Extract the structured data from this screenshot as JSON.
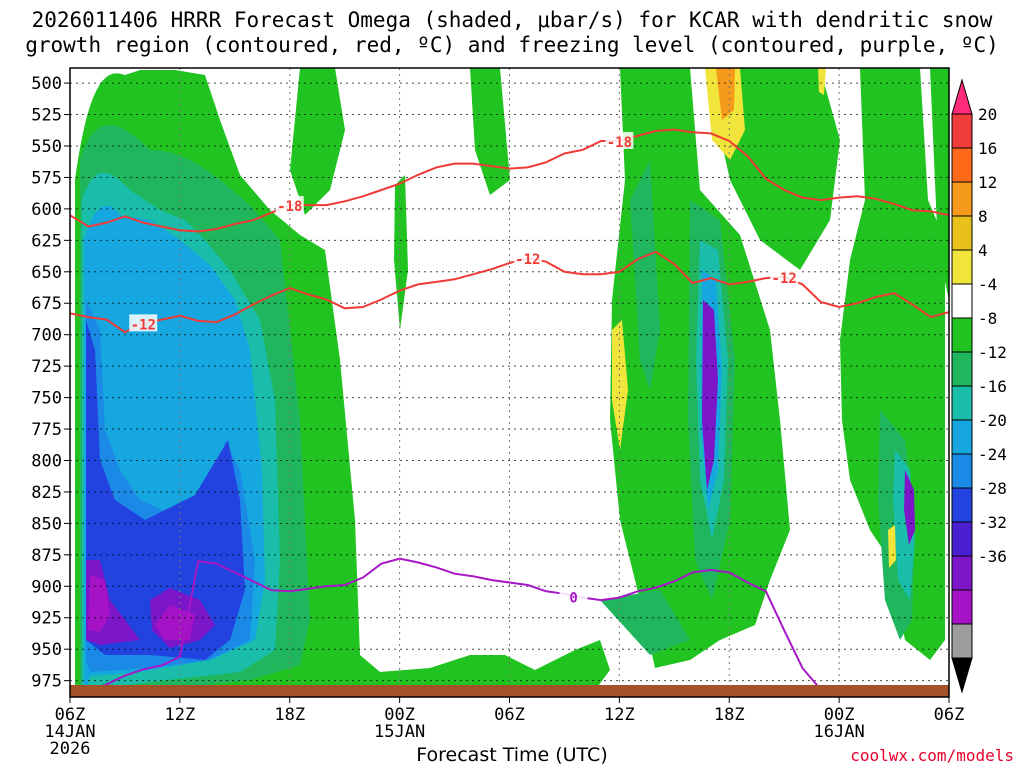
{
  "chart_data": {
    "type": "heatmap",
    "title_line1": "2026011406 HRRR Forecast Omega (shaded, μbar/s) for KCAR with dendritic snow",
    "title_line2": "growth region (contoured, red, ºC) and freezing level (contoured, purple, ºC)",
    "xlabel": "Forecast Time (UTC)",
    "credit": "coolwx.com/models",
    "y_ticks": [
      500,
      525,
      550,
      575,
      600,
      625,
      650,
      675,
      700,
      725,
      750,
      775,
      800,
      825,
      850,
      875,
      900,
      925,
      950,
      975
    ],
    "ylim": [
      488,
      988
    ],
    "y_inverted": true,
    "xlim": [
      0,
      48
    ],
    "x_ticks": [
      {
        "h": 0,
        "l1": "06Z",
        "l2": "14JAN",
        "l3": "2026"
      },
      {
        "h": 6,
        "l1": "12Z",
        "l2": "",
        "l3": ""
      },
      {
        "h": 12,
        "l1": "18Z",
        "l2": "",
        "l3": ""
      },
      {
        "h": 18,
        "l1": "00Z",
        "l2": "15JAN",
        "l3": ""
      },
      {
        "h": 24,
        "l1": "06Z",
        "l2": "",
        "l3": ""
      },
      {
        "h": 30,
        "l1": "12Z",
        "l2": "",
        "l3": ""
      },
      {
        "h": 36,
        "l1": "18Z",
        "l2": "",
        "l3": ""
      },
      {
        "h": 42,
        "l1": "00Z",
        "l2": "16JAN",
        "l3": ""
      },
      {
        "h": 48,
        "l1": "06Z",
        "l2": "",
        "l3": ""
      }
    ],
    "colorbar": {
      "labels": [
        20,
        16,
        12,
        8,
        4,
        -4,
        -8,
        -12,
        -16,
        -20,
        -24,
        -28,
        -32,
        -36
      ],
      "colors": [
        "#ff2a7a",
        "#f13c3c",
        "#ff6a1a",
        "#f59a1a",
        "#e8c21a",
        "#f1e43a",
        "#ffffff",
        "#20c320",
        "#1fb65e",
        "#19bda9",
        "#17a7e0",
        "#1a8ae6",
        "#2243df",
        "#4a1fd2",
        "#7b16c9",
        "#a613c6",
        "#9d9d9d",
        "#000000"
      ]
    },
    "series": [
      {
        "name": "-18",
        "color": "#ef3b36",
        "points": [
          [
            0,
            605
          ],
          [
            1,
            614
          ],
          [
            2,
            611
          ],
          [
            3,
            606
          ],
          [
            4,
            611
          ],
          [
            5,
            614
          ],
          [
            6,
            617
          ],
          [
            7,
            618
          ],
          [
            8,
            616
          ],
          [
            9,
            612
          ],
          [
            10,
            609
          ],
          [
            11,
            603
          ],
          [
            12,
            597
          ],
          [
            13,
            597
          ],
          [
            14,
            597
          ],
          [
            15,
            594
          ],
          [
            16,
            590
          ],
          [
            17,
            585
          ],
          [
            18,
            580
          ],
          [
            19,
            573
          ],
          [
            20,
            567
          ],
          [
            21,
            564
          ],
          [
            22,
            564
          ],
          [
            23,
            566
          ],
          [
            24,
            568
          ],
          [
            25,
            567
          ],
          [
            26,
            563
          ],
          [
            27,
            556
          ],
          [
            28,
            553
          ],
          [
            29,
            546
          ],
          [
            30,
            546
          ],
          [
            31,
            542
          ],
          [
            32,
            538
          ],
          [
            33,
            537
          ],
          [
            34,
            539
          ],
          [
            35,
            540
          ],
          [
            36,
            546
          ],
          [
            37,
            558
          ],
          [
            38,
            576
          ],
          [
            39,
            585
          ],
          [
            40,
            591
          ],
          [
            41,
            593
          ],
          [
            42,
            591
          ],
          [
            43,
            590
          ],
          [
            44,
            592
          ],
          [
            45,
            596
          ],
          [
            46,
            601
          ],
          [
            47,
            602
          ],
          [
            48,
            605
          ]
        ]
      },
      {
        "name": "-12",
        "color": "#ef3b36",
        "points": [
          [
            0,
            683
          ],
          [
            1,
            686
          ],
          [
            2,
            688
          ],
          [
            3,
            698
          ],
          [
            4,
            691
          ],
          [
            5,
            688
          ],
          [
            6,
            685
          ],
          [
            7,
            689
          ],
          [
            8,
            690
          ],
          [
            9,
            684
          ],
          [
            10,
            676
          ],
          [
            11,
            669
          ],
          [
            12,
            663
          ],
          [
            13,
            668
          ],
          [
            14,
            672
          ],
          [
            15,
            679
          ],
          [
            16,
            678
          ],
          [
            17,
            672
          ],
          [
            18,
            665
          ],
          [
            19,
            660
          ],
          [
            20,
            658
          ],
          [
            21,
            656
          ],
          [
            22,
            652
          ],
          [
            23,
            648
          ],
          [
            24,
            643
          ],
          [
            25,
            639
          ],
          [
            26,
            642
          ],
          [
            27,
            650
          ],
          [
            28,
            652
          ],
          [
            29,
            652
          ],
          [
            30,
            650
          ],
          [
            31,
            640
          ],
          [
            32,
            634
          ],
          [
            33,
            644
          ],
          [
            34,
            659
          ],
          [
            35,
            655
          ],
          [
            36,
            660
          ],
          [
            37,
            658
          ],
          [
            38,
            655
          ],
          [
            39,
            654
          ],
          [
            40,
            660
          ],
          [
            41,
            674
          ],
          [
            42,
            678
          ],
          [
            43,
            675
          ],
          [
            44,
            670
          ],
          [
            45,
            667
          ],
          [
            46,
            676
          ],
          [
            47,
            686
          ],
          [
            48,
            682
          ]
        ]
      },
      {
        "name": "0",
        "color": "#a617c6",
        "points": [
          [
            1,
            983
          ],
          [
            2,
            978
          ],
          [
            3,
            971
          ],
          [
            4,
            966
          ],
          [
            5,
            963
          ],
          [
            6,
            956
          ],
          [
            7,
            880
          ],
          [
            8,
            882
          ],
          [
            9,
            889
          ],
          [
            10,
            896
          ],
          [
            11,
            903
          ],
          [
            12,
            904
          ],
          [
            13,
            902
          ],
          [
            14,
            900
          ],
          [
            15,
            899
          ],
          [
            16,
            893
          ],
          [
            17,
            882
          ],
          [
            18,
            878
          ],
          [
            19,
            881
          ],
          [
            20,
            885
          ],
          [
            21,
            890
          ],
          [
            22,
            892
          ],
          [
            23,
            895
          ],
          [
            24,
            897
          ],
          [
            25,
            899
          ],
          [
            26,
            904
          ],
          [
            27,
            906
          ],
          [
            28,
            909
          ],
          [
            29,
            911
          ],
          [
            30,
            909
          ],
          [
            31,
            904
          ],
          [
            32,
            901
          ],
          [
            33,
            896
          ],
          [
            34,
            889
          ],
          [
            35,
            887
          ],
          [
            36,
            889
          ],
          [
            37,
            897
          ],
          [
            38,
            904
          ],
          [
            39,
            935
          ],
          [
            40,
            965
          ],
          [
            41,
            982
          ]
        ]
      }
    ],
    "freezing_label": "0"
  }
}
